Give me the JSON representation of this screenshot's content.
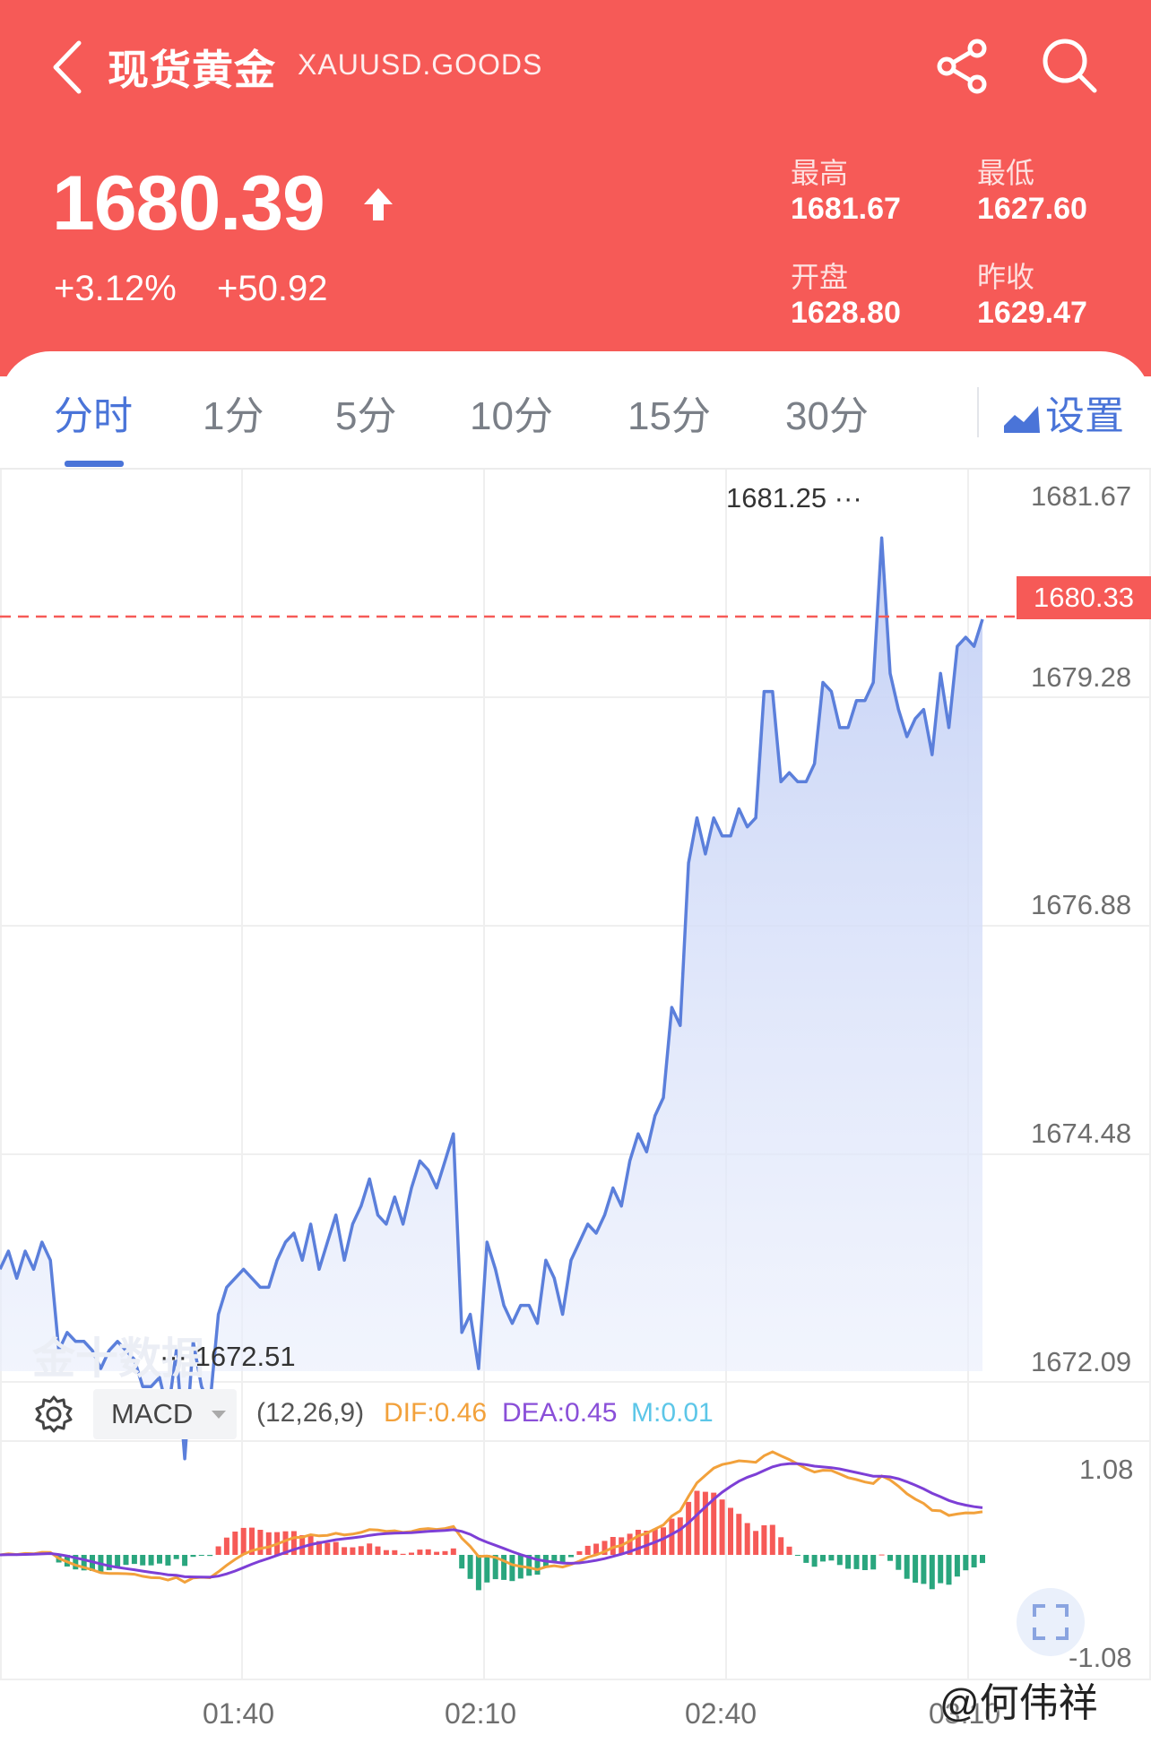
{
  "header": {
    "title": "现货黄金",
    "symbol": "XAUUSD.GOODS",
    "price": "1680.39",
    "change_pct": "+3.12%",
    "change_abs": "+50.92",
    "stats": {
      "high_label": "最高",
      "high": "1681.67",
      "low_label": "最低",
      "low": "1627.60",
      "open_label": "开盘",
      "open": "1628.80",
      "prev_close_label": "昨收",
      "prev_close": "1629.47"
    },
    "bg_color": "#f65a57"
  },
  "tabs": {
    "items": [
      "分时",
      "1分",
      "5分",
      "10分",
      "15分",
      "30分"
    ],
    "active": "分时",
    "settings_label": "设置"
  },
  "chart": {
    "y_labels": [
      "1681.67",
      "1679.28",
      "1676.88",
      "1674.48",
      "1672.09"
    ],
    "last_price_badge": "1680.33",
    "max_annotation": "1681.25 ···",
    "min_annotation": "··· 1672.51",
    "watermark": "金十数据",
    "macd": {
      "selector_label": "MACD",
      "params": "(12,26,9)",
      "dif": "DIF:0.46",
      "dea": "DEA:0.45",
      "m": "M:0.01",
      "y_top": "1.08",
      "y_bottom": "-1.08"
    },
    "x_labels": [
      "01:40",
      "02:10",
      "02:40",
      "03:10"
    ]
  },
  "credit": "@何伟祥",
  "chart_data": {
    "type": "line",
    "ylim": [
      1672.09,
      1681.67
    ],
    "xticks": [
      "01:40",
      "02:10",
      "02:40",
      "03:10"
    ],
    "values": [
      1673.1,
      1673.3,
      1673.0,
      1673.3,
      1673.1,
      1673.4,
      1673.2,
      1672.2,
      1672.4,
      1672.3,
      1672.3,
      1672.2,
      1672.0,
      1672.2,
      1672.3,
      1672.2,
      1672.1,
      1671.8,
      1671.8,
      1671.9,
      1671.5,
      1672.2,
      1671.0,
      1672.3,
      1671.8,
      1671.6,
      1672.6,
      1672.9,
      1673.0,
      1673.1,
      1673.0,
      1672.9,
      1672.9,
      1673.2,
      1673.4,
      1673.5,
      1673.2,
      1673.6,
      1673.1,
      1673.4,
      1673.7,
      1673.2,
      1673.6,
      1673.8,
      1674.1,
      1673.7,
      1673.6,
      1673.9,
      1673.6,
      1674.0,
      1674.3,
      1674.2,
      1674.0,
      1674.3,
      1674.6,
      1672.4,
      1672.6,
      1672.0,
      1673.4,
      1673.1,
      1672.7,
      1672.5,
      1672.7,
      1672.7,
      1672.5,
      1673.2,
      1673.0,
      1672.6,
      1673.2,
      1673.4,
      1673.6,
      1673.5,
      1673.7,
      1674.0,
      1673.8,
      1674.3,
      1674.6,
      1674.4,
      1674.8,
      1675.0,
      1676.0,
      1675.8,
      1677.6,
      1678.1,
      1677.7,
      1678.1,
      1677.9,
      1677.9,
      1678.2,
      1678.0,
      1678.1,
      1679.5,
      1679.5,
      1678.5,
      1678.6,
      1678.5,
      1678.5,
      1678.7,
      1679.6,
      1679.5,
      1679.1,
      1679.1,
      1679.4,
      1679.4,
      1679.6,
      1681.2,
      1679.7,
      1679.3,
      1679.0,
      1679.2,
      1679.3,
      1678.8,
      1679.7,
      1679.1,
      1680.0,
      1680.1,
      1680.0,
      1680.3
    ],
    "last": 1680.33,
    "max": 1681.25,
    "min": 1672.51
  }
}
